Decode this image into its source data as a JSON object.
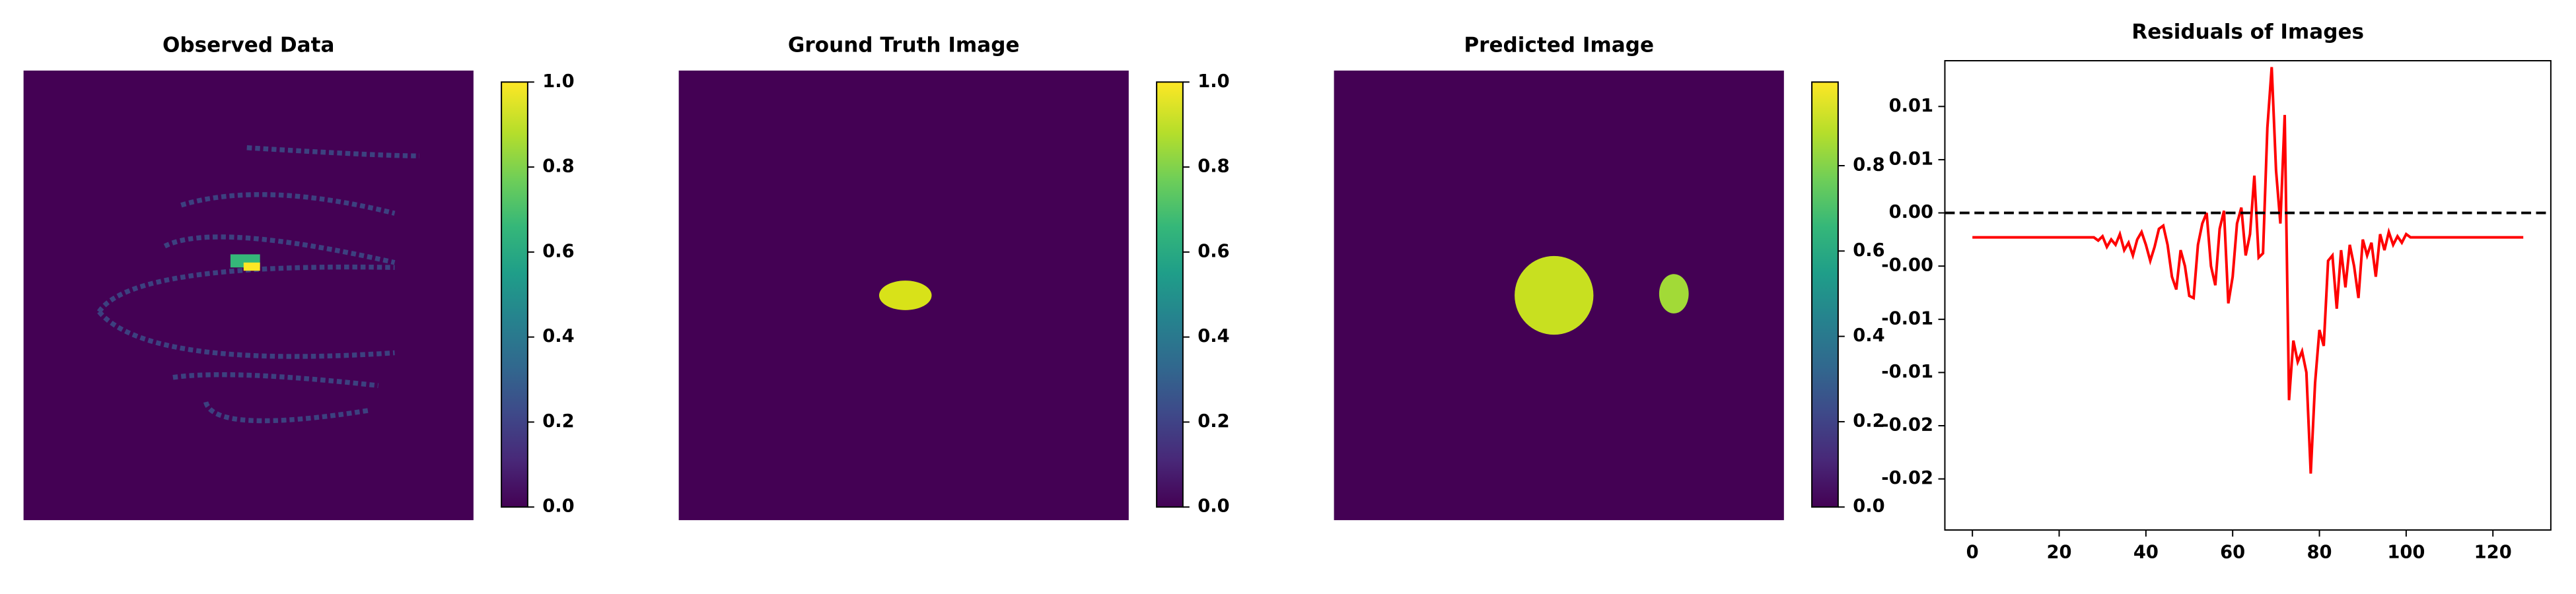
{
  "chart_data": [
    {
      "type": "image",
      "title": "Observed Data",
      "clim": [
        0,
        1
      ],
      "cticks": [
        {
          "value": 0,
          "label": "0.0"
        },
        {
          "value": 0.2,
          "label": "0.2"
        },
        {
          "value": 0.4,
          "label": "0.4"
        },
        {
          "value": 0.6,
          "label": "0.6"
        },
        {
          "value": 0.8,
          "label": "0.8"
        },
        {
          "value": 1,
          "label": "1.0"
        }
      ]
    },
    {
      "type": "image",
      "title": "Ground Truth Image",
      "clim": [
        0,
        1
      ],
      "cticks": [
        {
          "value": 0,
          "label": "0.0"
        },
        {
          "value": 0.2,
          "label": "0.2"
        },
        {
          "value": 0.4,
          "label": "0.4"
        },
        {
          "value": 0.6,
          "label": "0.6"
        },
        {
          "value": 0.8,
          "label": "0.8"
        },
        {
          "value": 1,
          "label": "1.0"
        }
      ]
    },
    {
      "type": "image",
      "title": "Predicted Image",
      "clim": [
        0,
        0.996
      ],
      "cticks": [
        {
          "value": 0,
          "label": "0.0"
        },
        {
          "value": 0.2,
          "label": "0.2"
        },
        {
          "value": 0.4,
          "label": "0.4"
        },
        {
          "value": 0.6,
          "label": "0.6"
        },
        {
          "value": 0.8,
          "label": "0.8"
        }
      ]
    },
    {
      "type": "line",
      "title": "Residuals of Images",
      "color": "#ff0000",
      "hline": 0,
      "xlim": [
        -6.35,
        133.35
      ],
      "xticks": [
        0,
        20,
        40,
        60,
        80,
        100,
        120
      ],
      "ylim": [
        -0.0298,
        0.0143
      ],
      "yticks": [
        {
          "value": 0.01,
          "label": "0.01"
        },
        {
          "value": 0.005,
          "label": "0.01"
        },
        {
          "value": 0,
          "label": "0.00"
        },
        {
          "value": -0.005,
          "label": "-0.00"
        },
        {
          "value": -0.01,
          "label": "-0.01"
        },
        {
          "value": -0.015,
          "label": "-0.01"
        },
        {
          "value": -0.02,
          "label": "-0.02"
        },
        {
          "value": -0.025,
          "label": "-0.02"
        }
      ],
      "x": [
        0,
        1,
        2,
        3,
        4,
        5,
        6,
        7,
        8,
        9,
        10,
        11,
        12,
        13,
        14,
        15,
        16,
        17,
        18,
        19,
        20,
        21,
        22,
        23,
        24,
        25,
        26,
        27,
        28,
        29,
        30,
        31,
        32,
        33,
        34,
        35,
        36,
        37,
        38,
        39,
        40,
        41,
        42,
        43,
        44,
        45,
        46,
        47,
        48,
        49,
        50,
        51,
        52,
        53,
        54,
        55,
        56,
        57,
        58,
        59,
        60,
        61,
        62,
        63,
        64,
        65,
        66,
        67,
        68,
        69,
        70,
        71,
        72,
        73,
        74,
        75,
        76,
        77,
        78,
        79,
        80,
        81,
        82,
        83,
        84,
        85,
        86,
        87,
        88,
        89,
        90,
        91,
        92,
        93,
        94,
        95,
        96,
        97,
        98,
        99,
        100,
        101,
        102,
        103,
        104,
        105,
        106,
        107,
        108,
        109,
        110,
        111,
        112,
        113,
        114,
        115,
        116,
        117,
        118,
        119,
        120,
        121,
        122,
        123,
        124,
        125,
        126,
        127
      ],
      "values": [
        -0.0023,
        -0.0023,
        -0.0023,
        -0.0023,
        -0.0023,
        -0.0023,
        -0.0023,
        -0.0023,
        -0.0023,
        -0.0023,
        -0.0023,
        -0.0023,
        -0.0023,
        -0.0023,
        -0.0023,
        -0.0023,
        -0.0023,
        -0.0023,
        -0.0023,
        -0.0023,
        -0.0023,
        -0.0023,
        -0.0023,
        -0.0023,
        -0.0023,
        -0.0023,
        -0.0023,
        -0.0023,
        -0.0023,
        -0.0026,
        -0.0022,
        -0.0032,
        -0.0025,
        -0.003,
        -0.002,
        -0.0035,
        -0.0028,
        -0.004,
        -0.0025,
        -0.0018,
        -0.003,
        -0.0045,
        -0.0032,
        -0.0015,
        -0.0012,
        -0.003,
        -0.006,
        -0.0072,
        -0.0035,
        -0.005,
        -0.0078,
        -0.008,
        -0.003,
        -0.001,
        0.0,
        -0.005,
        -0.0068,
        -0.0015,
        0.0002,
        -0.0085,
        -0.006,
        -0.001,
        0.0005,
        -0.004,
        -0.002,
        0.0035,
        -0.0042,
        -0.0038,
        0.008,
        0.0137,
        0.004,
        -0.001,
        0.0092,
        -0.0176,
        -0.012,
        -0.014,
        -0.013,
        -0.015,
        -0.0245,
        -0.016,
        -0.011,
        -0.0125,
        -0.0045,
        -0.004,
        -0.009,
        -0.0035,
        -0.007,
        -0.003,
        -0.005,
        -0.008,
        -0.0025,
        -0.004,
        -0.0028,
        -0.006,
        -0.002,
        -0.0035,
        -0.0018,
        -0.003,
        -0.0022,
        -0.0028,
        -0.002,
        -0.0023,
        -0.0023,
        -0.0023,
        -0.0023,
        -0.0023,
        -0.0023,
        -0.0023,
        -0.0023,
        -0.0023,
        -0.0023,
        -0.0023,
        -0.0023,
        -0.0023,
        -0.0023,
        -0.0023,
        -0.0023,
        -0.0023,
        -0.0023,
        -0.0023,
        -0.0023,
        -0.0023,
        -0.0023,
        -0.0023,
        -0.0023,
        -0.0023,
        -0.0023,
        -0.0023
      ]
    }
  ]
}
